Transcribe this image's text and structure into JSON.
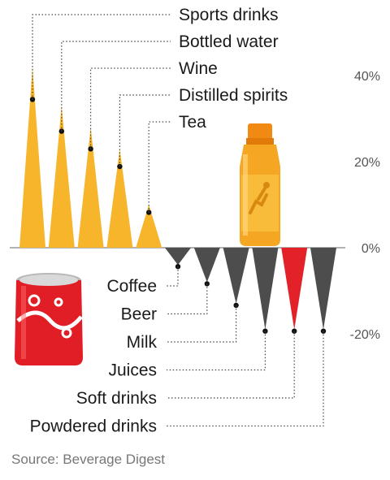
{
  "chart_data": {
    "type": "bar",
    "categories": [
      "Sports drinks",
      "Bottled water",
      "Wine",
      "Distilled spirits",
      "Tea",
      "Coffee",
      "Beer",
      "Milk",
      "Juices",
      "Soft drinks",
      "Powdered drinks"
    ],
    "values": [
      42,
      33,
      28,
      23,
      10,
      -4,
      -8,
      -13,
      -19,
      -19,
      -19
    ],
    "ylim": [
      -25,
      50
    ],
    "yticks": [
      {
        "value": 40,
        "label": "40%"
      },
      {
        "value": 20,
        "label": "20%"
      },
      {
        "value": 0,
        "label": "0%"
      },
      {
        "value": -20,
        "label": "-20%"
      }
    ],
    "source": "Source: Beverage Digest"
  },
  "colors": {
    "positive": "#f7b52b",
    "negative": "#4d4d4d",
    "highlight": "#e22128",
    "highlight_category": "Soft drinks"
  },
  "icons": [
    "sports-drink-bottle-icon",
    "soda-can-icon"
  ]
}
